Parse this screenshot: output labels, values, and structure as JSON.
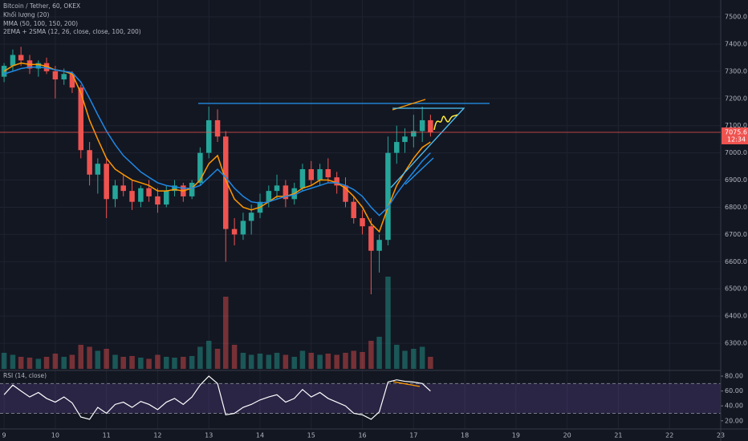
{
  "chart_data": {
    "type": "candlestick",
    "title": "Bitcoin / Tether, 60, OKEX",
    "indicators": [
      "Khối lượng (20)",
      "MMA (50, 100, 150, 200)",
      "2EMA + 2SMA (12, 26, close, close, 100, 200)"
    ],
    "up_color": "#26a69a",
    "down_color": "#ef5350",
    "x": [
      9,
      9.17,
      9.33,
      9.5,
      9.67,
      9.83,
      10,
      10.17,
      10.33,
      10.5,
      10.67,
      10.83,
      11,
      11.17,
      11.33,
      11.5,
      11.67,
      11.83,
      12,
      12.17,
      12.33,
      12.5,
      12.67,
      12.83,
      13,
      13.17,
      13.33,
      13.5,
      13.67,
      13.83,
      14,
      14.17,
      14.33,
      14.5,
      14.67,
      14.83,
      15,
      15.17,
      15.33,
      15.5,
      15.67,
      15.83,
      16,
      16.17,
      16.33,
      16.5,
      16.67,
      16.83,
      17,
      17.17,
      17.33
    ],
    "open": [
      7280,
      7320,
      7360,
      7340,
      7310,
      7330,
      7300,
      7270,
      7290,
      7240,
      7010,
      6920,
      6960,
      6830,
      6880,
      6860,
      6820,
      6870,
      6840,
      6810,
      6860,
      6880,
      6840,
      6890,
      7000,
      7120,
      7060,
      6720,
      6700,
      6750,
      6780,
      6820,
      6860,
      6880,
      6830,
      6870,
      6940,
      6900,
      6940,
      6910,
      6880,
      6820,
      6760,
      6730,
      6640,
      6680,
      7000,
      7040,
      7060,
      7080,
      7120
    ],
    "high": [
      7330,
      7380,
      7390,
      7360,
      7340,
      7350,
      7320,
      7310,
      7300,
      7250,
      7040,
      6980,
      6980,
      6900,
      6920,
      6900,
      6880,
      6900,
      6870,
      6880,
      6900,
      6890,
      6900,
      7020,
      7170,
      7160,
      7080,
      6760,
      6780,
      6810,
      6850,
      6880,
      6920,
      6900,
      6890,
      6960,
      6970,
      6960,
      6980,
      6930,
      6910,
      6840,
      6790,
      6760,
      6700,
      7060,
      7100,
      7090,
      7140,
      7170,
      7140
    ],
    "low": [
      7260,
      7300,
      7320,
      7290,
      7280,
      7290,
      7200,
      7250,
      7220,
      6980,
      6880,
      6850,
      6760,
      6800,
      6840,
      6790,
      6800,
      6820,
      6780,
      6800,
      6840,
      6820,
      6830,
      6880,
      6980,
      7040,
      6600,
      6660,
      6680,
      6700,
      6760,
      6800,
      6830,
      6800,
      6810,
      6860,
      6880,
      6880,
      6890,
      6850,
      6800,
      6740,
      6700,
      6480,
      6560,
      6660,
      6960,
      7000,
      7020,
      7040,
      7060
    ],
    "close": [
      7320,
      7360,
      7340,
      7310,
      7330,
      7300,
      7270,
      7290,
      7240,
      7010,
      6920,
      6960,
      6830,
      6880,
      6860,
      6820,
      6870,
      6840,
      6810,
      6860,
      6880,
      6840,
      6890,
      7000,
      7120,
      7060,
      6720,
      6700,
      6750,
      6780,
      6820,
      6860,
      6880,
      6830,
      6870,
      6940,
      6900,
      6940,
      6910,
      6880,
      6820,
      6760,
      6730,
      6640,
      6680,
      7000,
      7040,
      7060,
      7080,
      7120,
      7075.6
    ],
    "volume": [
      40,
      35,
      30,
      28,
      25,
      30,
      38,
      30,
      35,
      60,
      55,
      45,
      50,
      35,
      30,
      32,
      28,
      25,
      35,
      30,
      28,
      30,
      32,
      55,
      70,
      50,
      180,
      60,
      40,
      35,
      38,
      35,
      40,
      35,
      30,
      45,
      40,
      35,
      38,
      35,
      40,
      45,
      42,
      70,
      80,
      230,
      60,
      45,
      50,
      55,
      30
    ],
    "ema": {
      "color": "#ff9800",
      "values": [
        7300,
        7320,
        7330,
        7325,
        7325,
        7318,
        7305,
        7300,
        7290,
        7220,
        7120,
        7050,
        6980,
        6940,
        6920,
        6900,
        6890,
        6880,
        6860,
        6860,
        6865,
        6860,
        6870,
        6900,
        6960,
        6990,
        6900,
        6830,
        6800,
        6790,
        6800,
        6820,
        6840,
        6840,
        6850,
        6870,
        6880,
        6900,
        6900,
        6890,
        6870,
        6840,
        6800,
        6740,
        6710,
        6800,
        6880,
        6930,
        6980,
        7020,
        7040
      ]
    },
    "sma": {
      "color": "#1e88e5",
      "values": [
        7290,
        7300,
        7310,
        7315,
        7315,
        7312,
        7305,
        7300,
        7295,
        7260,
        7200,
        7140,
        7080,
        7030,
        6990,
        6960,
        6930,
        6910,
        6890,
        6880,
        6875,
        6870,
        6870,
        6880,
        6910,
        6940,
        6910,
        6870,
        6840,
        6820,
        6815,
        6820,
        6830,
        6840,
        6845,
        6860,
        6870,
        6880,
        6890,
        6890,
        6880,
        6865,
        6840,
        6800,
        6770,
        6800,
        6850,
        6890,
        6930,
        6970,
        7000
      ]
    },
    "xlim": [
      8.92,
      23
    ],
    "xticks": [
      9,
      10,
      11,
      12,
      13,
      14,
      15,
      16,
      17,
      18,
      19,
      20,
      21,
      22,
      23
    ],
    "ylim": [
      6200,
      7562
    ],
    "yticks": [
      {
        "value": 6300,
        "label": "6300.0"
      },
      {
        "value": 6400,
        "label": "6400.0"
      },
      {
        "value": 6500,
        "label": "6500.0"
      },
      {
        "value": 6600,
        "label": "6600.0"
      },
      {
        "value": 6700,
        "label": "6700.0"
      },
      {
        "value": 6800,
        "label": "6800.0"
      },
      {
        "value": 6900,
        "label": "6900.0"
      },
      {
        "value": 7000,
        "label": "7000.0"
      },
      {
        "value": 7100,
        "label": "7100.0"
      },
      {
        "value": 7200,
        "label": "7200.0"
      },
      {
        "value": 7300,
        "label": "7300.0"
      },
      {
        "value": 7400,
        "label": "7400.0"
      },
      {
        "value": 7500,
        "label": "7500.0"
      }
    ],
    "countdown": "12:34",
    "rsi": {
      "title": "RSI (14, close)",
      "color": "#ffffff",
      "values": [
        55,
        68,
        60,
        52,
        58,
        50,
        45,
        52,
        44,
        25,
        22,
        38,
        30,
        42,
        45,
        38,
        46,
        42,
        35,
        45,
        50,
        42,
        52,
        68,
        80,
        70,
        28,
        30,
        38,
        42,
        48,
        52,
        55,
        45,
        50,
        62,
        52,
        58,
        50,
        45,
        40,
        30,
        28,
        22,
        32,
        72,
        75,
        73,
        72,
        70,
        60
      ],
      "ylim": [
        9,
        87.6
      ],
      "bands": [
        30,
        70
      ],
      "yticks": [
        {
          "value": 20,
          "label": "20.00"
        },
        {
          "value": 40,
          "label": "40.00"
        },
        {
          "value": 60,
          "label": "60.00"
        },
        {
          "value": 80,
          "label": "80.00"
        }
      ]
    }
  }
}
